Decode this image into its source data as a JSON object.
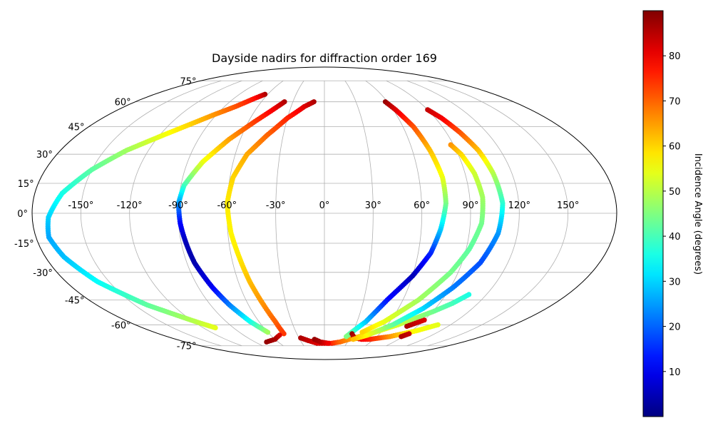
{
  "chart_data": {
    "type": "scatter",
    "projection": "mollweide",
    "title": "Dayside nadirs for diffraction order 169",
    "grid": true,
    "lon_ticks": [
      "-150°",
      "-120°",
      "-90°",
      "-60°",
      "-30°",
      "0°",
      "30°",
      "60°",
      "90°",
      "120°",
      "150°"
    ],
    "lon_tick_values": [
      -150,
      -120,
      -90,
      -60,
      -30,
      0,
      30,
      60,
      90,
      120,
      150
    ],
    "lat_ticks": [
      "75°",
      "60°",
      "45°",
      "30°",
      "15°",
      "0°",
      "-15°",
      "-30°",
      "-45°",
      "-60°",
      "-75°"
    ],
    "lat_tick_values": [
      75,
      60,
      45,
      30,
      15,
      0,
      -15,
      -30,
      -45,
      -60,
      -75
    ],
    "colorbar": {
      "label": "Incidence Angle (degrees)",
      "colormap": "jet",
      "range": [
        0,
        90
      ],
      "ticks": [
        "10",
        "20",
        "30",
        "40",
        "50",
        "60",
        "70",
        "80"
      ],
      "tick_values": [
        10,
        20,
        30,
        40,
        50,
        60,
        70,
        80
      ],
      "placement": "right"
    },
    "series": [
      {
        "points": [
          [
            -63,
            65,
            86
          ],
          [
            -70,
            62,
            78
          ],
          [
            -80,
            57,
            72
          ],
          [
            -92,
            52,
            66
          ],
          [
            -105,
            46,
            60
          ],
          [
            -118,
            40,
            55
          ],
          [
            -135,
            32,
            48
          ],
          [
            -150,
            22,
            42
          ],
          [
            -163,
            10,
            36
          ],
          [
            -170,
            -2,
            30
          ],
          [
            -172,
            -12,
            26
          ],
          [
            -168,
            -22,
            28
          ],
          [
            -158,
            -35,
            34
          ],
          [
            -140,
            -48,
            42
          ],
          [
            -118,
            -58,
            50
          ],
          [
            -108,
            -62,
            54
          ]
        ]
      },
      {
        "points": [
          [
            -38,
            60,
            86
          ],
          [
            -45,
            55,
            80
          ],
          [
            -55,
            48,
            74
          ],
          [
            -68,
            38,
            65
          ],
          [
            -80,
            26,
            55
          ],
          [
            -88,
            14,
            40
          ],
          [
            -90,
            5,
            25
          ],
          [
            -89,
            -5,
            12
          ],
          [
            -87,
            -15,
            5
          ],
          [
            -85,
            -25,
            4
          ],
          [
            -80,
            -38,
            10
          ],
          [
            -75,
            -48,
            22
          ],
          [
            -68,
            -58,
            35
          ],
          [
            -60,
            -65,
            48
          ]
        ]
      },
      {
        "points": [
          [
            -10,
            60,
            86
          ],
          [
            -18,
            57,
            82
          ],
          [
            -30,
            50,
            76
          ],
          [
            -42,
            40,
            70
          ],
          [
            -52,
            30,
            64
          ],
          [
            -58,
            18,
            60
          ],
          [
            -60,
            5,
            58
          ],
          [
            -58,
            -10,
            57
          ],
          [
            -55,
            -22,
            58
          ],
          [
            -52,
            -35,
            62
          ],
          [
            -48,
            -48,
            66
          ],
          [
            -45,
            -58,
            70
          ],
          [
            -44,
            -66,
            74
          ]
        ]
      },
      {
        "points": [
          [
            -50,
            -67,
            82
          ],
          [
            -60,
            -70,
            86
          ],
          [
            -75,
            -72,
            88
          ]
        ]
      },
      {
        "points": [
          [
            -28,
            -69,
            86
          ],
          [
            -20,
            -71,
            84
          ],
          [
            -10,
            -73,
            82
          ],
          [
            0,
            -73,
            80
          ],
          [
            10,
            -73,
            76
          ],
          [
            20,
            -72,
            70
          ],
          [
            30,
            -70,
            66
          ],
          [
            40,
            -68,
            62
          ],
          [
            50,
            -66,
            58
          ],
          [
            60,
            -63,
            55
          ],
          [
            70,
            -60,
            52
          ],
          [
            80,
            -56,
            48
          ],
          [
            90,
            -52,
            44
          ],
          [
            100,
            -47,
            40
          ],
          [
            107,
            -42,
            36
          ]
        ]
      },
      {
        "points": [
          [
            -12,
            -70,
            88
          ],
          [
            -5,
            -72,
            86
          ],
          [
            5,
            -73,
            80
          ]
        ]
      },
      {
        "points": [
          [
            58,
            60,
            88
          ],
          [
            62,
            55,
            82
          ],
          [
            68,
            45,
            72
          ],
          [
            72,
            32,
            62
          ],
          [
            75,
            18,
            55
          ],
          [
            75,
            5,
            45
          ],
          [
            72,
            -8,
            30
          ],
          [
            68,
            -20,
            15
          ],
          [
            60,
            -32,
            5
          ],
          [
            48,
            -45,
            12
          ],
          [
            38,
            -58,
            28
          ],
          [
            25,
            -68,
            45
          ]
        ]
      },
      {
        "points": [
          [
            30,
            -66,
            88
          ],
          [
            35,
            -69,
            84
          ],
          [
            45,
            -70,
            80
          ],
          [
            55,
            -70,
            76
          ],
          [
            65,
            -69,
            72
          ],
          [
            75,
            -68,
            66
          ],
          [
            85,
            -66,
            60
          ],
          [
            95,
            -64,
            56
          ],
          [
            108,
            -60,
            54
          ]
        ]
      },
      {
        "points": [
          [
            90,
            55,
            84
          ],
          [
            95,
            50,
            80
          ],
          [
            100,
            42,
            72
          ],
          [
            105,
            32,
            62
          ],
          [
            108,
            20,
            50
          ],
          [
            110,
            5,
            38
          ],
          [
            108,
            -10,
            25
          ],
          [
            102,
            -25,
            18
          ],
          [
            92,
            -38,
            22
          ],
          [
            80,
            -50,
            30
          ],
          [
            65,
            -60,
            42
          ],
          [
            48,
            -67,
            55
          ],
          [
            35,
            -70,
            62
          ]
        ]
      },
      {
        "points": [
          [
            88,
            35,
            66
          ],
          [
            92,
            30,
            60
          ],
          [
            96,
            20,
            52
          ],
          [
            98,
            8,
            48
          ],
          [
            97,
            -5,
            44
          ],
          [
            92,
            -18,
            42
          ],
          [
            85,
            -30,
            44
          ],
          [
            72,
            -45,
            48
          ],
          [
            55,
            -58,
            54
          ],
          [
            40,
            -65,
            60
          ]
        ]
      },
      {
        "points": [
          [
            80,
            -61,
            86
          ],
          [
            85,
            -59,
            84
          ],
          [
            90,
            -57,
            82
          ]
        ]
      },
      {
        "points": [
          [
            88,
            -68,
            86
          ],
          [
            92,
            -66,
            84
          ]
        ]
      }
    ]
  }
}
